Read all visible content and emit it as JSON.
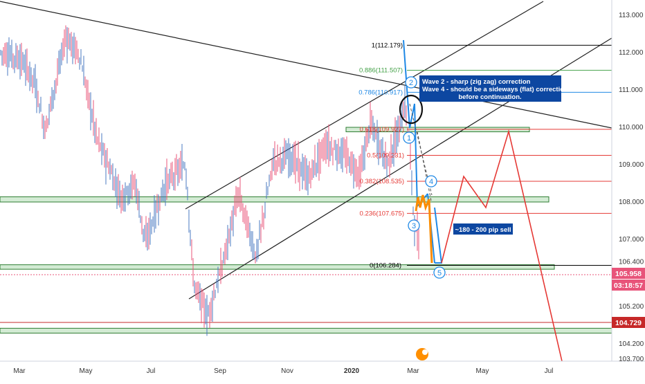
{
  "chart_data": {
    "type": "line",
    "title": "",
    "y_axis": {
      "min": 103.7,
      "max": 113.2,
      "ticks": [
        "113.000",
        "112.000",
        "111.000",
        "110.000",
        "109.000",
        "108.000",
        "107.000",
        "106.400",
        "105.200",
        "104.200",
        "103.700"
      ]
    },
    "x_axis": {
      "labels": [
        "Mar",
        "May",
        "Jul",
        "Sep",
        "Nov",
        "2020",
        "Mar",
        "May",
        "Jul"
      ]
    },
    "price_badges": [
      {
        "text": "105.958",
        "color": "#e8547a"
      },
      {
        "text": "03:18:57",
        "color": "#e8547a"
      },
      {
        "text": "104.729",
        "color": "#c62828"
      }
    ],
    "fib_levels": [
      {
        "label": "1(112.179)",
        "price": 112.179,
        "color": "#000000"
      },
      {
        "label": "0.886(111.507)",
        "price": 111.507,
        "color": "#43a047"
      },
      {
        "label": "0.786(110.917)",
        "price": 110.917,
        "color": "#1e88e5"
      },
      {
        "label": "0.618(109.927)",
        "price": 109.927,
        "color": "#e53935"
      },
      {
        "label": "0.5(109.231)",
        "price": 109.231,
        "color": "#e53935"
      },
      {
        "label": "0.382(108.535)",
        "price": 108.535,
        "color": "#e53935"
      },
      {
        "label": "0.236(107.675)",
        "price": 107.675,
        "color": "#e53935"
      },
      {
        "label": "0(106.284)",
        "price": 106.284,
        "color": "#000000"
      }
    ],
    "wave_labels": [
      "1",
      "2",
      "3",
      "4",
      "5"
    ],
    "annotations": {
      "wave_box_lines": [
        "Wave 2 - sharp (zig zag) correction",
        "Wave 4 - should be a sideways (flat) correction",
        "before continuation."
      ],
      "pip_target": "~180 - 200 pip sell"
    },
    "price_series_color": "#e8547a",
    "price_series_color_alt": "#4a78c2",
    "support_zones": [
      {
        "price_low": 109.86,
        "price_high": 109.98
      },
      {
        "price_low": 107.98,
        "price_high": 108.12
      },
      {
        "price_low": 106.18,
        "price_high": 106.3
      },
      {
        "price_low": 104.47,
        "price_high": 104.6
      }
    ],
    "projection_color": "#e53935",
    "wave_color": "#1e88e5"
  }
}
